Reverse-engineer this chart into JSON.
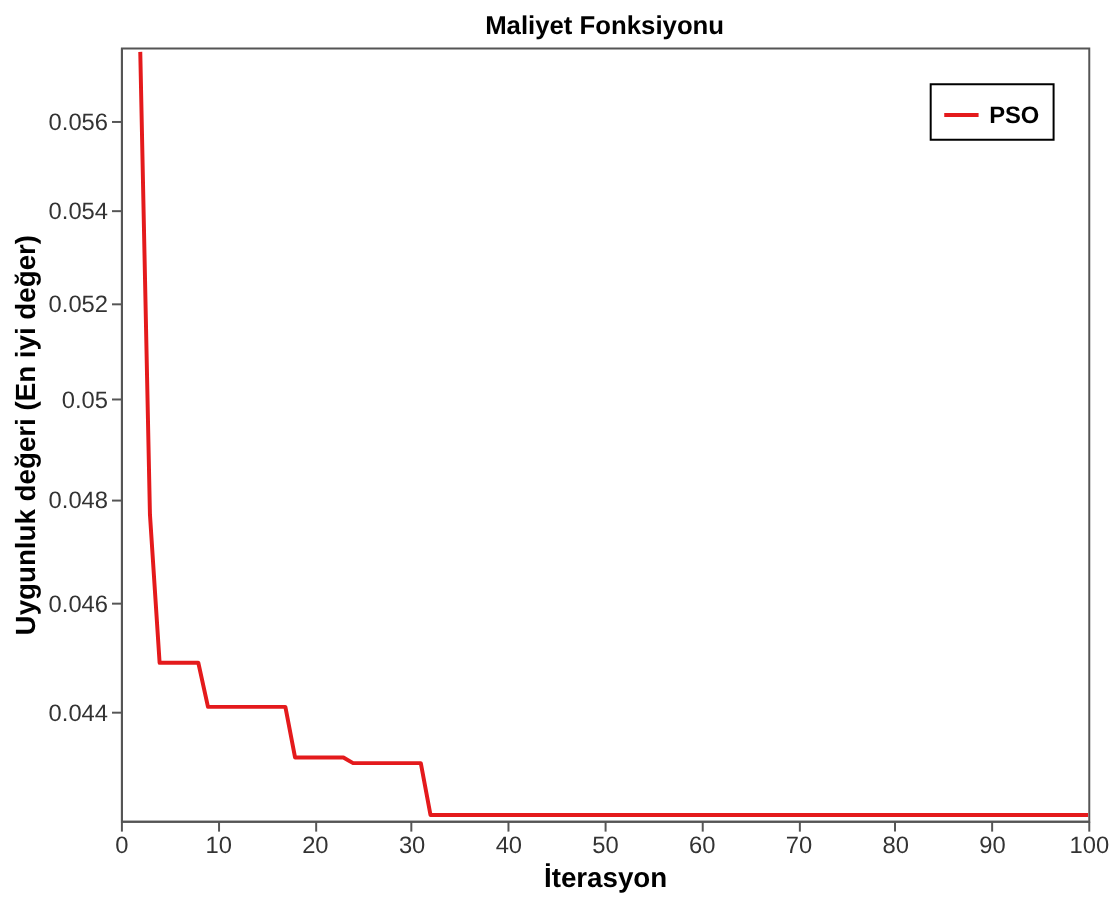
{
  "chart_data": {
    "type": "line",
    "title": "Maliyet Fonksiyonu",
    "xlabel": "İterasyon",
    "ylabel": "Uygunluk değeri (En iyi değer)",
    "x": [
      2,
      3,
      4,
      8,
      9,
      17,
      18,
      23,
      24,
      31,
      32,
      100
    ],
    "series": [
      {
        "name": "PSO",
        "color": "#e41a1c",
        "values": [
          0.0576,
          0.0477,
          0.0449,
          0.0449,
          0.0441,
          0.0441,
          0.0432,
          0.0432,
          0.0431,
          0.0431,
          0.0422,
          0.0422
        ]
      }
    ],
    "xlim": [
      0,
      100
    ],
    "xticks": [
      0,
      10,
      20,
      30,
      40,
      50,
      60,
      70,
      80,
      90,
      100
    ],
    "ylim": [
      0.0421,
      0.0577
    ],
    "yticks": [
      0.044,
      0.046,
      0.048,
      0.05,
      0.052,
      0.054,
      0.056
    ],
    "log": "y",
    "grid": false,
    "legend": "top right",
    "marker": "none",
    "line_style": "solid"
  }
}
